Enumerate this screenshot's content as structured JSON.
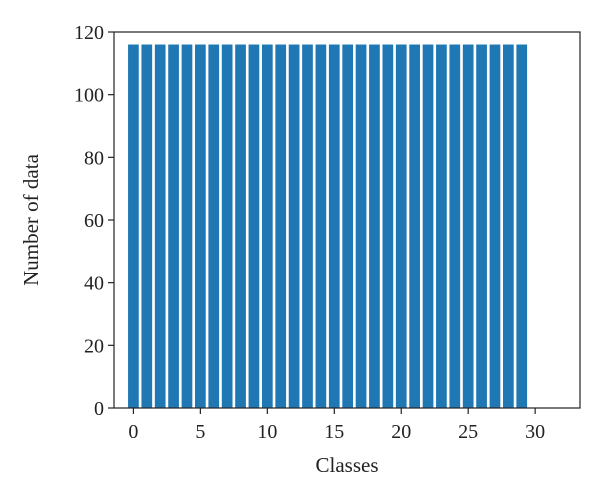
{
  "chart_data": {
    "type": "bar",
    "title": "",
    "xlabel": "Classes",
    "ylabel": "Number of data",
    "x": [
      0,
      1,
      2,
      3,
      4,
      5,
      6,
      7,
      8,
      9,
      10,
      11,
      12,
      13,
      14,
      15,
      16,
      17,
      18,
      19,
      20,
      21,
      22,
      23,
      24,
      25,
      26,
      27,
      28,
      29
    ],
    "values": [
      116,
      116,
      116,
      116,
      116,
      116,
      116,
      116,
      116,
      116,
      116,
      116,
      116,
      116,
      116,
      116,
      116,
      116,
      116,
      116,
      116,
      116,
      116,
      116,
      116,
      116,
      116,
      116,
      116,
      116
    ],
    "xlim": [
      -1.45,
      33.35
    ],
    "ylim": [
      0,
      120
    ],
    "xticks": [
      0,
      5,
      10,
      15,
      20,
      25,
      30
    ],
    "yticks": [
      0,
      20,
      40,
      60,
      80,
      100,
      120
    ],
    "bar_color": "#1f77b4",
    "grid": false,
    "legend": "none"
  }
}
